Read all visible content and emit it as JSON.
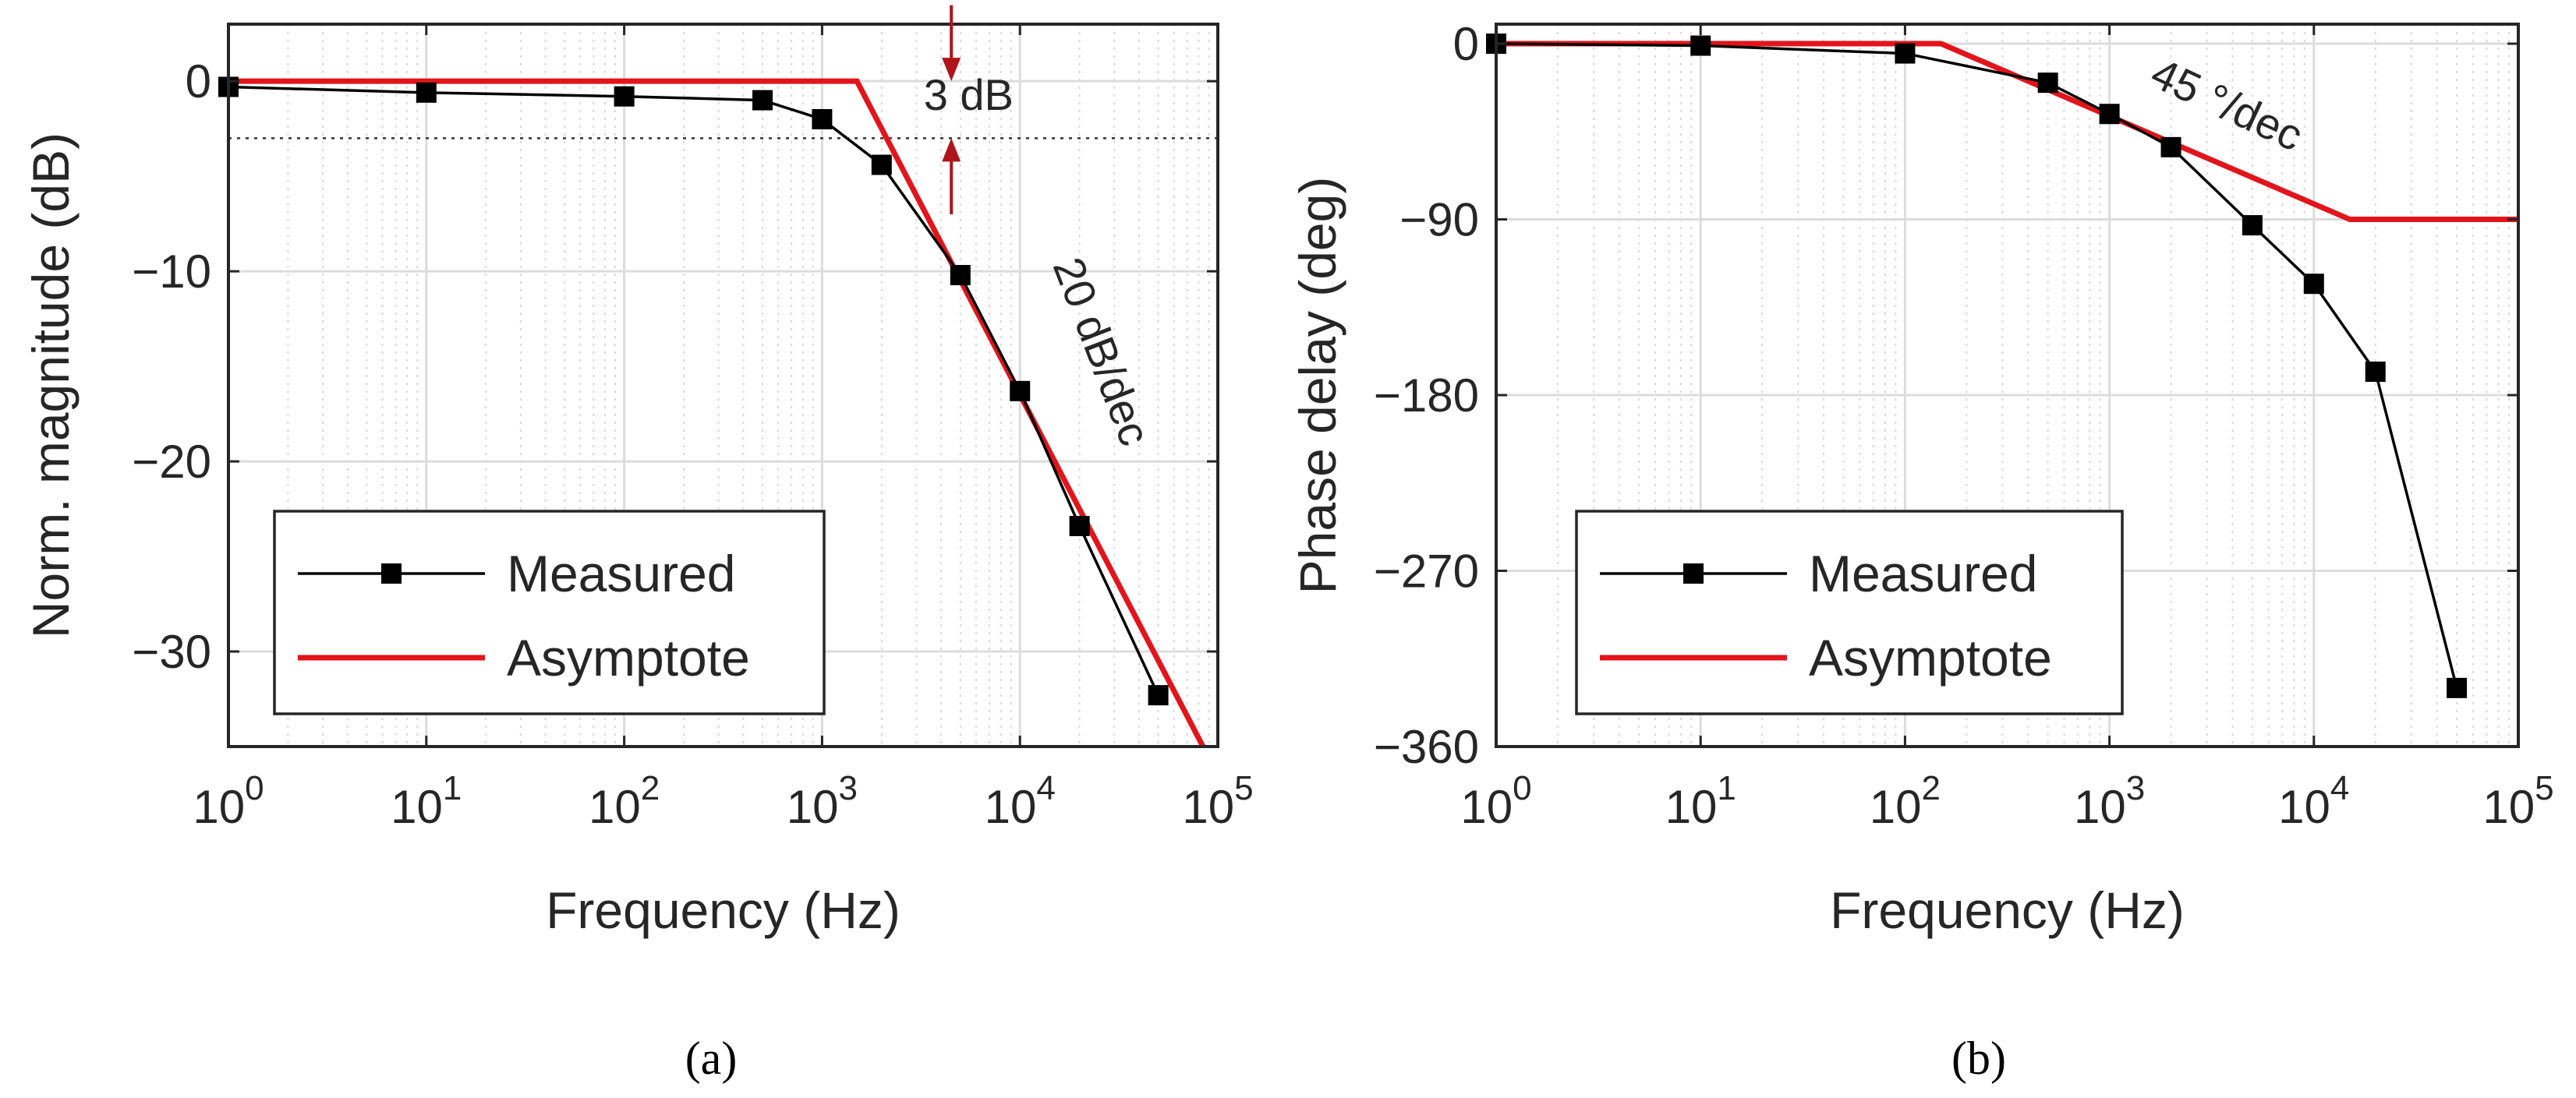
{
  "colors": {
    "measured": "#000000",
    "asymptote": "#e3141b",
    "annotation_arrow": "#b0141b",
    "grid": "#dcdcdc",
    "axis": "#262626"
  },
  "chart_data": [
    {
      "id": "a",
      "type": "line",
      "xscale": "log",
      "xlim": [
        1,
        100000
      ],
      "ylim": [
        -35,
        3
      ],
      "xlabel": "Frequency (Hz)",
      "ylabel": "Norm. magnitude (dB)",
      "caption": "(a)",
      "xticks": [
        1,
        10,
        100,
        1000,
        10000,
        100000
      ],
      "xtick_labels": [
        {
          "base": "10",
          "exp": "0"
        },
        {
          "base": "10",
          "exp": "1"
        },
        {
          "base": "10",
          "exp": "2"
        },
        {
          "base": "10",
          "exp": "3"
        },
        {
          "base": "10",
          "exp": "4"
        },
        {
          "base": "10",
          "exp": "5"
        }
      ],
      "yticks": [
        0,
        -10,
        -20,
        -30
      ],
      "ytick_labels": [
        "0",
        "−10",
        "−20",
        "−30"
      ],
      "grid": true,
      "legend": {
        "placement": "bottom-left",
        "entries": [
          "Measured",
          "Asymptote"
        ]
      },
      "series": [
        {
          "name": "Measured",
          "marker": "square",
          "x": [
            1,
            10,
            100,
            500,
            1000,
            2000,
            5000,
            10000,
            20000,
            50000
          ],
          "y": [
            -0.3,
            -0.6,
            -0.8,
            -1.0,
            -2.0,
            -4.4,
            -10.2,
            -16.3,
            -23.4,
            -32.3
          ]
        },
        {
          "name": "Asymptote",
          "marker": "none",
          "x": [
            1,
            1500,
            100000
          ],
          "y": [
            0,
            0,
            -36.5
          ]
        }
      ],
      "reference_line": {
        "y": -3,
        "style": "dotted"
      },
      "annotations": [
        {
          "text": "3 dB",
          "x": 5500,
          "y": -1.5
        },
        {
          "text": "20 dB/dec",
          "x": 22000,
          "y": -14.5,
          "rotation": 69
        }
      ],
      "arrows": [
        {
          "x": 4500,
          "y_from": 4,
          "y_to": 0
        },
        {
          "x": 4500,
          "y_from": -7,
          "y_to": -3
        }
      ]
    },
    {
      "id": "b",
      "type": "line",
      "xscale": "log",
      "xlim": [
        1,
        100000
      ],
      "ylim": [
        -360,
        10
      ],
      "xlabel": "Frequency (Hz)",
      "ylabel": "Phase delay (deg)",
      "caption": "(b)",
      "xticks": [
        1,
        10,
        100,
        1000,
        10000,
        100000
      ],
      "xtick_labels": [
        {
          "base": "10",
          "exp": "0"
        },
        {
          "base": "10",
          "exp": "1"
        },
        {
          "base": "10",
          "exp": "2"
        },
        {
          "base": "10",
          "exp": "3"
        },
        {
          "base": "10",
          "exp": "4"
        },
        {
          "base": "10",
          "exp": "5"
        }
      ],
      "yticks": [
        0,
        -90,
        -180,
        -270,
        -360
      ],
      "ytick_labels": [
        "0",
        "−90",
        "−180",
        "−270",
        "−360"
      ],
      "grid": true,
      "legend": {
        "placement": "bottom-left",
        "entries": [
          "Measured",
          "Asymptote"
        ]
      },
      "series": [
        {
          "name": "Measured",
          "marker": "square",
          "x": [
            1,
            10,
            100,
            500,
            1000,
            2000,
            5000,
            10000,
            20000,
            50000
          ],
          "y": [
            0,
            -1,
            -5,
            -20,
            -36,
            -53,
            -93,
            -123,
            -168,
            -330
          ]
        },
        {
          "name": "Asymptote",
          "marker": "none",
          "x": [
            1,
            150,
            15000,
            100000
          ],
          "y": [
            0,
            0,
            -90,
            -90
          ]
        }
      ],
      "annotations": [
        {
          "text": "45 °/dec",
          "x": 3500,
          "y": -38,
          "rotation": 25
        }
      ]
    }
  ]
}
